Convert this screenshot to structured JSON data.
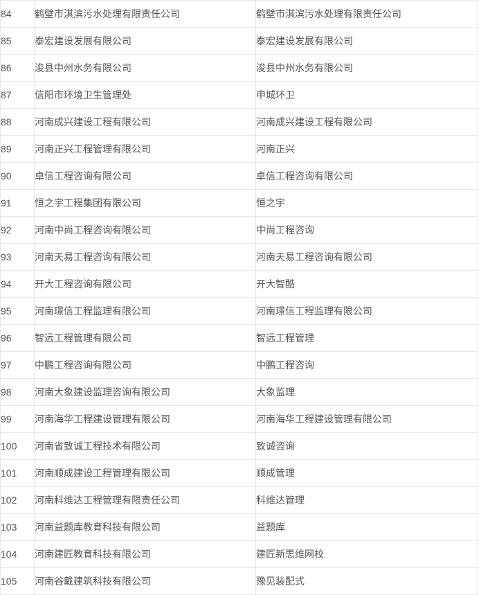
{
  "colors": {
    "border": "#e8e8e8",
    "text": "#555555",
    "background": "#ffffff"
  },
  "table": {
    "columns": [
      {
        "key": "number",
        "role": "row-index"
      },
      {
        "key": "full_name",
        "role": "company-full-name"
      },
      {
        "key": "short_name",
        "role": "company-short-name"
      }
    ],
    "rows": [
      {
        "number": "84",
        "full_name": "鹤壁市淇滨污水处理有限责任公司",
        "short_name": "鹤壁市淇滨污水处理有限责任公司"
      },
      {
        "number": "85",
        "full_name": "泰宏建设发展有限公司",
        "short_name": "泰宏建设发展有限公司"
      },
      {
        "number": "86",
        "full_name": "浚县中州水务有限公司",
        "short_name": "浚县中州水务有限公司"
      },
      {
        "number": "87",
        "full_name": "信阳市环境卫生管理处",
        "short_name": "申城环卫"
      },
      {
        "number": "88",
        "full_name": "河南成兴建设工程有限公司",
        "short_name": "河南成兴建设工程有限公司"
      },
      {
        "number": "89",
        "full_name": "河南正兴工程管理有限公司",
        "short_name": "河南正兴"
      },
      {
        "number": "90",
        "full_name": "卓信工程咨询有限公司",
        "short_name": "卓信工程咨询有限公司"
      },
      {
        "number": "91",
        "full_name": "恒之宇工程集团有限公司",
        "short_name": "恒之宇"
      },
      {
        "number": "92",
        "full_name": "河南中尚工程咨询有限公司",
        "short_name": "中尚工程咨询"
      },
      {
        "number": "93",
        "full_name": "河南天易工程咨询有限公司",
        "short_name": "河南天易工程咨询有限公司"
      },
      {
        "number": "94",
        "full_name": "开大工程咨询有限公司",
        "short_name": "开大智酷"
      },
      {
        "number": "95",
        "full_name": "河南璟信工程监理有限公司",
        "short_name": "河南璟信工程监理有限公司"
      },
      {
        "number": "96",
        "full_name": "智远工程管理有限公司",
        "short_name": "智远工程管理"
      },
      {
        "number": "97",
        "full_name": "中鹏工程咨询有限公司",
        "short_name": "中鹏工程咨询"
      },
      {
        "number": "98",
        "full_name": "河南大象建设监理咨询有限公司",
        "short_name": "大象监理"
      },
      {
        "number": "99",
        "full_name": "河南海华工程建设管理有限公司",
        "short_name": "河南海华工程建设管理有限公司"
      },
      {
        "number": "100",
        "full_name": "河南省致诚工程技术有限公司",
        "short_name": "致诚咨询"
      },
      {
        "number": "101",
        "full_name": "河南顺成建设工程管理有限公司",
        "short_name": "顺成管理"
      },
      {
        "number": "102",
        "full_name": "河南科维达工程管理有限责任公司",
        "short_name": "科维达管理"
      },
      {
        "number": "103",
        "full_name": "河南益题库教育科技有限公司",
        "short_name": "益题库"
      },
      {
        "number": "104",
        "full_name": "河南建匠教育科技有限公司",
        "short_name": "建匠新思维网校"
      },
      {
        "number": "105",
        "full_name": "河南谷戴建筑科技有限公司",
        "short_name": "豫见装配式"
      }
    ]
  }
}
